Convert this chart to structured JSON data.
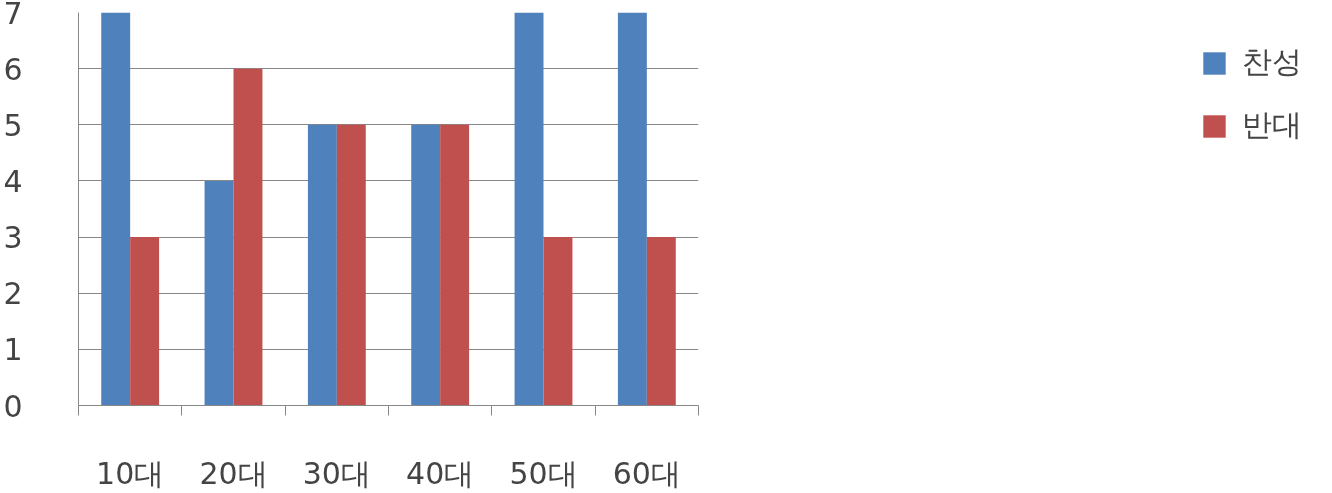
{
  "chart_data": {
    "type": "bar",
    "categories": [
      "10대",
      "20대",
      "30대",
      "40대",
      "50대",
      "60대"
    ],
    "series": [
      {
        "name": "찬성",
        "color": "#4f81bd",
        "values": [
          7,
          4,
          5,
          5,
          7,
          7
        ]
      },
      {
        "name": "반대",
        "color": "#c0504d",
        "values": [
          3,
          6,
          5,
          5,
          3,
          3
        ]
      }
    ],
    "ylim": [
      0,
      7
    ],
    "yticks": [
      0,
      1,
      2,
      3,
      4,
      5,
      6,
      7
    ],
    "grid": "y",
    "legend": "right"
  }
}
